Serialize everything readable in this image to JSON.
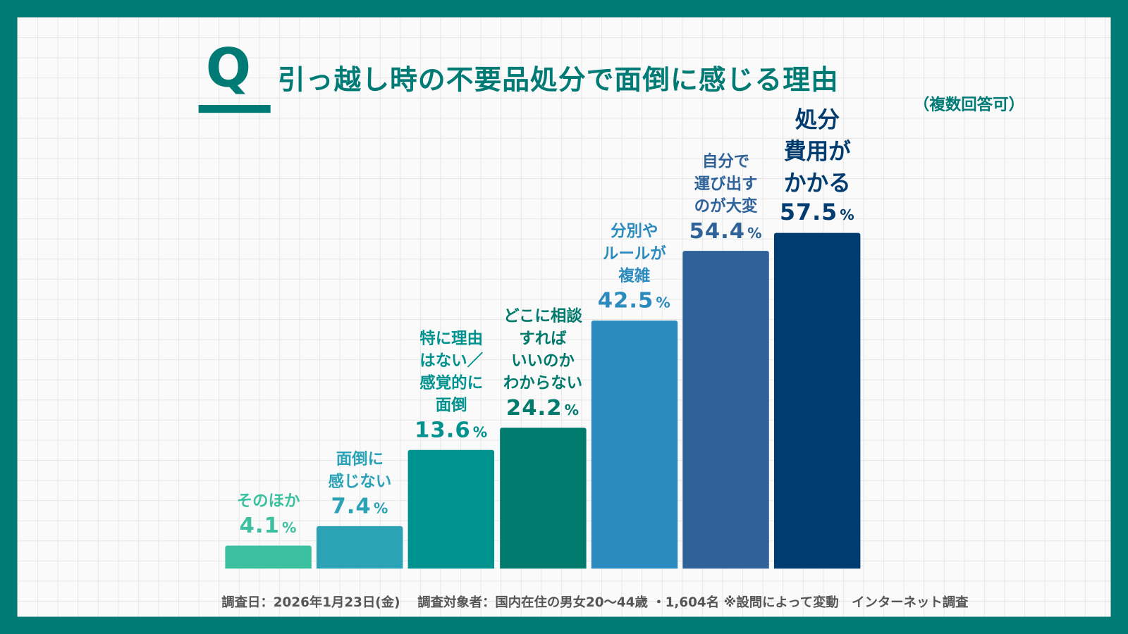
{
  "header": {
    "q_mark": "Q",
    "title": "引っ越し時の不要品処分で面倒に感じる理由",
    "subtitle": "（複数回答可）"
  },
  "chart_data": {
    "type": "bar",
    "title": "引っ越し時の不要品処分で面倒に感じる理由",
    "unit": "%",
    "categories": [
      "そのほか",
      "面倒に感じない",
      "特に理由はない／感覚的に面倒",
      "どこに相談すればいいのかわからない",
      "分別やルールが複雑",
      "自分で運び出すのが大変",
      "処分費用がかかる"
    ],
    "display_labels": [
      "そのほか",
      "面倒に\n感じない",
      "特に理由\nはない／\n感覚的に\n面倒",
      "どこに相談\nすれば\nいいのか\nわからない",
      "分別や\nルールが\n複雑",
      "自分で\n運び出す\nのが大変",
      "処分\n費用が\nかかる"
    ],
    "values": [
      4.1,
      7.4,
      13.6,
      24.2,
      42.5,
      54.4,
      57.5
    ],
    "value_labels": [
      "4.1",
      "7.4",
      "13.6",
      "24.2",
      "42.5",
      "54.4",
      "57.5"
    ],
    "colors": [
      "#3cc1a0",
      "#2ba2b6",
      "#00928f",
      "#007a6c",
      "#2b8bbf",
      "#2e6299",
      "#003c6f"
    ],
    "label_colors": [
      "#3cc1a0",
      "#2ba2b6",
      "#00928f",
      "#007a6c",
      "#2b8bbf",
      "#2e6299",
      "#003c6f"
    ],
    "grid": true
  },
  "footer": {
    "text": "調査日：2026年1月23日(金)　 調査対象者：国内在住の男女20〜44歳 ・1,604名 ※設問によって変動　インターネット調査"
  }
}
